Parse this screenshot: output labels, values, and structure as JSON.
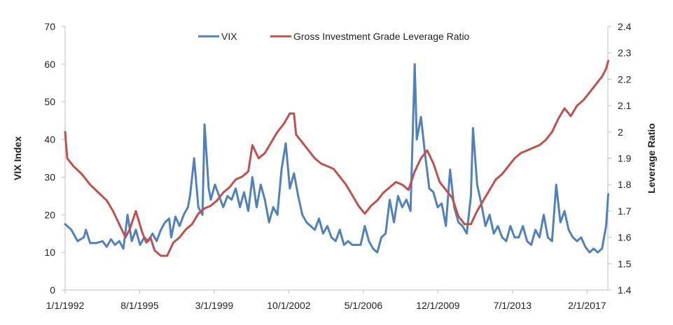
{
  "chart_data": {
    "type": "line",
    "title": "",
    "xlabel": "",
    "ylabel_left": "VIX Index",
    "ylabel_right": "Leverage Ratio",
    "x_range": [
      "1/1/1992",
      "2/1/2018"
    ],
    "x_ticks": [
      "1/1/1992",
      "8/1/1995",
      "3/1/1999",
      "10/1/2002",
      "5/1/2006",
      "12/1/2009",
      "7/1/2013",
      "2/1/2017"
    ],
    "ylim_left": [
      0,
      70
    ],
    "y_ticks_left": [
      "0",
      "10",
      "20",
      "30",
      "40",
      "50",
      "60",
      "70"
    ],
    "ylim_right": [
      1.4,
      2.4
    ],
    "y_ticks_right": [
      "1.4",
      "1.5",
      "1.6",
      "1.7",
      "1.8",
      "1.9",
      "2",
      "2.1",
      "2.2",
      "2.3",
      "2.4"
    ],
    "grid": false,
    "legend_position": "top-center",
    "colors": {
      "vix": "#4f81bd",
      "leverage": "#c0504d",
      "axis": "#bfbfbf"
    },
    "series": [
      {
        "name": "VIX",
        "axis": "left",
        "points": [
          [
            1992.0,
            17.5
          ],
          [
            1992.3,
            16
          ],
          [
            1992.6,
            13
          ],
          [
            1992.9,
            14
          ],
          [
            1993.0,
            16
          ],
          [
            1993.2,
            12.5
          ],
          [
            1993.5,
            12.5
          ],
          [
            1993.8,
            13
          ],
          [
            1994.0,
            11.5
          ],
          [
            1994.2,
            13.5
          ],
          [
            1994.4,
            12
          ],
          [
            1994.6,
            13
          ],
          [
            1994.8,
            11
          ],
          [
            1995.0,
            20
          ],
          [
            1995.2,
            13
          ],
          [
            1995.4,
            16
          ],
          [
            1995.6,
            12
          ],
          [
            1995.8,
            14
          ],
          [
            1996.0,
            13
          ],
          [
            1996.2,
            15
          ],
          [
            1996.4,
            13
          ],
          [
            1996.6,
            16
          ],
          [
            1996.8,
            18
          ],
          [
            1997.0,
            19
          ],
          [
            1997.1,
            14
          ],
          [
            1997.3,
            19.5
          ],
          [
            1997.5,
            17
          ],
          [
            1997.7,
            20
          ],
          [
            1997.9,
            22
          ],
          [
            1998.0,
            25
          ],
          [
            1998.2,
            35
          ],
          [
            1998.4,
            22
          ],
          [
            1998.6,
            20
          ],
          [
            1998.7,
            44
          ],
          [
            1998.9,
            27
          ],
          [
            1999.0,
            24
          ],
          [
            1999.2,
            28
          ],
          [
            1999.4,
            25
          ],
          [
            1999.6,
            22
          ],
          [
            1999.8,
            25
          ],
          [
            2000.0,
            24
          ],
          [
            2000.2,
            27
          ],
          [
            2000.4,
            22
          ],
          [
            2000.6,
            26
          ],
          [
            2000.8,
            21
          ],
          [
            2001.0,
            30
          ],
          [
            2001.2,
            22
          ],
          [
            2001.4,
            28
          ],
          [
            2001.6,
            24
          ],
          [
            2001.8,
            18
          ],
          [
            2002.0,
            22
          ],
          [
            2002.2,
            20
          ],
          [
            2002.4,
            32
          ],
          [
            2002.6,
            39
          ],
          [
            2002.8,
            27
          ],
          [
            2003.0,
            31
          ],
          [
            2003.2,
            25
          ],
          [
            2003.4,
            20
          ],
          [
            2003.6,
            18
          ],
          [
            2003.8,
            17
          ],
          [
            2004.0,
            16
          ],
          [
            2004.2,
            19
          ],
          [
            2004.4,
            15
          ],
          [
            2004.6,
            17
          ],
          [
            2004.8,
            14
          ],
          [
            2005.0,
            13
          ],
          [
            2005.2,
            16
          ],
          [
            2005.4,
            12
          ],
          [
            2005.6,
            13
          ],
          [
            2005.8,
            12
          ],
          [
            2006.0,
            12
          ],
          [
            2006.2,
            12
          ],
          [
            2006.4,
            17
          ],
          [
            2006.6,
            13
          ],
          [
            2006.8,
            11
          ],
          [
            2007.0,
            10
          ],
          [
            2007.2,
            14
          ],
          [
            2007.4,
            15
          ],
          [
            2007.6,
            24
          ],
          [
            2007.8,
            18
          ],
          [
            2008.0,
            25
          ],
          [
            2008.2,
            22
          ],
          [
            2008.4,
            24
          ],
          [
            2008.6,
            21
          ],
          [
            2008.8,
            60
          ],
          [
            2008.9,
            40
          ],
          [
            2009.1,
            46
          ],
          [
            2009.3,
            36
          ],
          [
            2009.5,
            27
          ],
          [
            2009.7,
            26
          ],
          [
            2009.9,
            22
          ],
          [
            2010.1,
            23
          ],
          [
            2010.3,
            17
          ],
          [
            2010.5,
            32
          ],
          [
            2010.7,
            22
          ],
          [
            2010.9,
            18
          ],
          [
            2011.1,
            17
          ],
          [
            2011.3,
            15
          ],
          [
            2011.5,
            25
          ],
          [
            2011.6,
            43
          ],
          [
            2011.8,
            28
          ],
          [
            2012.0,
            23
          ],
          [
            2012.2,
            17
          ],
          [
            2012.4,
            20
          ],
          [
            2012.6,
            15
          ],
          [
            2012.8,
            17
          ],
          [
            2013.0,
            14
          ],
          [
            2013.2,
            13
          ],
          [
            2013.4,
            17
          ],
          [
            2013.6,
            14
          ],
          [
            2013.8,
            14
          ],
          [
            2014.0,
            17
          ],
          [
            2014.2,
            13
          ],
          [
            2014.4,
            12
          ],
          [
            2014.6,
            16
          ],
          [
            2014.8,
            14
          ],
          [
            2015.0,
            20
          ],
          [
            2015.2,
            14
          ],
          [
            2015.4,
            13
          ],
          [
            2015.6,
            28
          ],
          [
            2015.8,
            18
          ],
          [
            2016.0,
            21
          ],
          [
            2016.2,
            16
          ],
          [
            2016.4,
            14
          ],
          [
            2016.6,
            13
          ],
          [
            2016.8,
            14
          ],
          [
            2017.0,
            11.5
          ],
          [
            2017.2,
            10
          ],
          [
            2017.4,
            11
          ],
          [
            2017.6,
            10
          ],
          [
            2017.8,
            11
          ],
          [
            2018.0,
            17
          ],
          [
            2018.1,
            25.5
          ]
        ]
      },
      {
        "name": "Gross Investment Grade Leverage Ratio",
        "axis": "right",
        "points": [
          [
            1992.0,
            2.0
          ],
          [
            1992.1,
            1.9
          ],
          [
            1992.4,
            1.87
          ],
          [
            1992.8,
            1.84
          ],
          [
            1993.2,
            1.8
          ],
          [
            1993.6,
            1.77
          ],
          [
            1994.0,
            1.74
          ],
          [
            1994.3,
            1.7
          ],
          [
            1994.6,
            1.65
          ],
          [
            1994.9,
            1.6
          ],
          [
            1995.1,
            1.63
          ],
          [
            1995.4,
            1.7
          ],
          [
            1995.7,
            1.62
          ],
          [
            1995.9,
            1.58
          ],
          [
            1996.1,
            1.6
          ],
          [
            1996.3,
            1.55
          ],
          [
            1996.6,
            1.53
          ],
          [
            1996.9,
            1.53
          ],
          [
            1997.2,
            1.58
          ],
          [
            1997.5,
            1.6
          ],
          [
            1997.8,
            1.63
          ],
          [
            1998.1,
            1.65
          ],
          [
            1998.4,
            1.69
          ],
          [
            1998.7,
            1.71
          ],
          [
            1999.0,
            1.72
          ],
          [
            1999.3,
            1.74
          ],
          [
            1999.6,
            1.77
          ],
          [
            1999.9,
            1.79
          ],
          [
            2000.2,
            1.82
          ],
          [
            2000.5,
            1.83
          ],
          [
            2000.8,
            1.85
          ],
          [
            2001.0,
            1.95
          ],
          [
            2001.3,
            1.9
          ],
          [
            2001.6,
            1.92
          ],
          [
            2001.9,
            1.96
          ],
          [
            2002.2,
            2.0
          ],
          [
            2002.5,
            2.03
          ],
          [
            2002.8,
            2.07
          ],
          [
            2003.0,
            2.07
          ],
          [
            2003.1,
            1.99
          ],
          [
            2003.4,
            1.96
          ],
          [
            2003.7,
            1.93
          ],
          [
            2004.0,
            1.9
          ],
          [
            2004.3,
            1.88
          ],
          [
            2004.6,
            1.87
          ],
          [
            2004.9,
            1.86
          ],
          [
            2005.2,
            1.83
          ],
          [
            2005.5,
            1.8
          ],
          [
            2005.8,
            1.76
          ],
          [
            2006.1,
            1.72
          ],
          [
            2006.4,
            1.69
          ],
          [
            2006.7,
            1.72
          ],
          [
            2007.0,
            1.74
          ],
          [
            2007.3,
            1.77
          ],
          [
            2007.6,
            1.79
          ],
          [
            2007.9,
            1.81
          ],
          [
            2008.2,
            1.8
          ],
          [
            2008.5,
            1.78
          ],
          [
            2008.8,
            1.85
          ],
          [
            2009.1,
            1.9
          ],
          [
            2009.4,
            1.93
          ],
          [
            2009.7,
            1.88
          ],
          [
            2010.0,
            1.81
          ],
          [
            2010.3,
            1.78
          ],
          [
            2010.6,
            1.75
          ],
          [
            2010.9,
            1.68
          ],
          [
            2011.2,
            1.65
          ],
          [
            2011.5,
            1.65
          ],
          [
            2011.8,
            1.7
          ],
          [
            2012.1,
            1.74
          ],
          [
            2012.4,
            1.78
          ],
          [
            2012.7,
            1.82
          ],
          [
            2013.0,
            1.84
          ],
          [
            2013.3,
            1.87
          ],
          [
            2013.6,
            1.9
          ],
          [
            2013.9,
            1.92
          ],
          [
            2014.2,
            1.93
          ],
          [
            2014.5,
            1.94
          ],
          [
            2014.8,
            1.95
          ],
          [
            2015.1,
            1.97
          ],
          [
            2015.4,
            2.0
          ],
          [
            2015.7,
            2.05
          ],
          [
            2016.0,
            2.09
          ],
          [
            2016.3,
            2.06
          ],
          [
            2016.6,
            2.1
          ],
          [
            2016.9,
            2.12
          ],
          [
            2017.2,
            2.15
          ],
          [
            2017.5,
            2.18
          ],
          [
            2017.8,
            2.21
          ],
          [
            2018.0,
            2.24
          ],
          [
            2018.1,
            2.27
          ]
        ]
      }
    ]
  }
}
